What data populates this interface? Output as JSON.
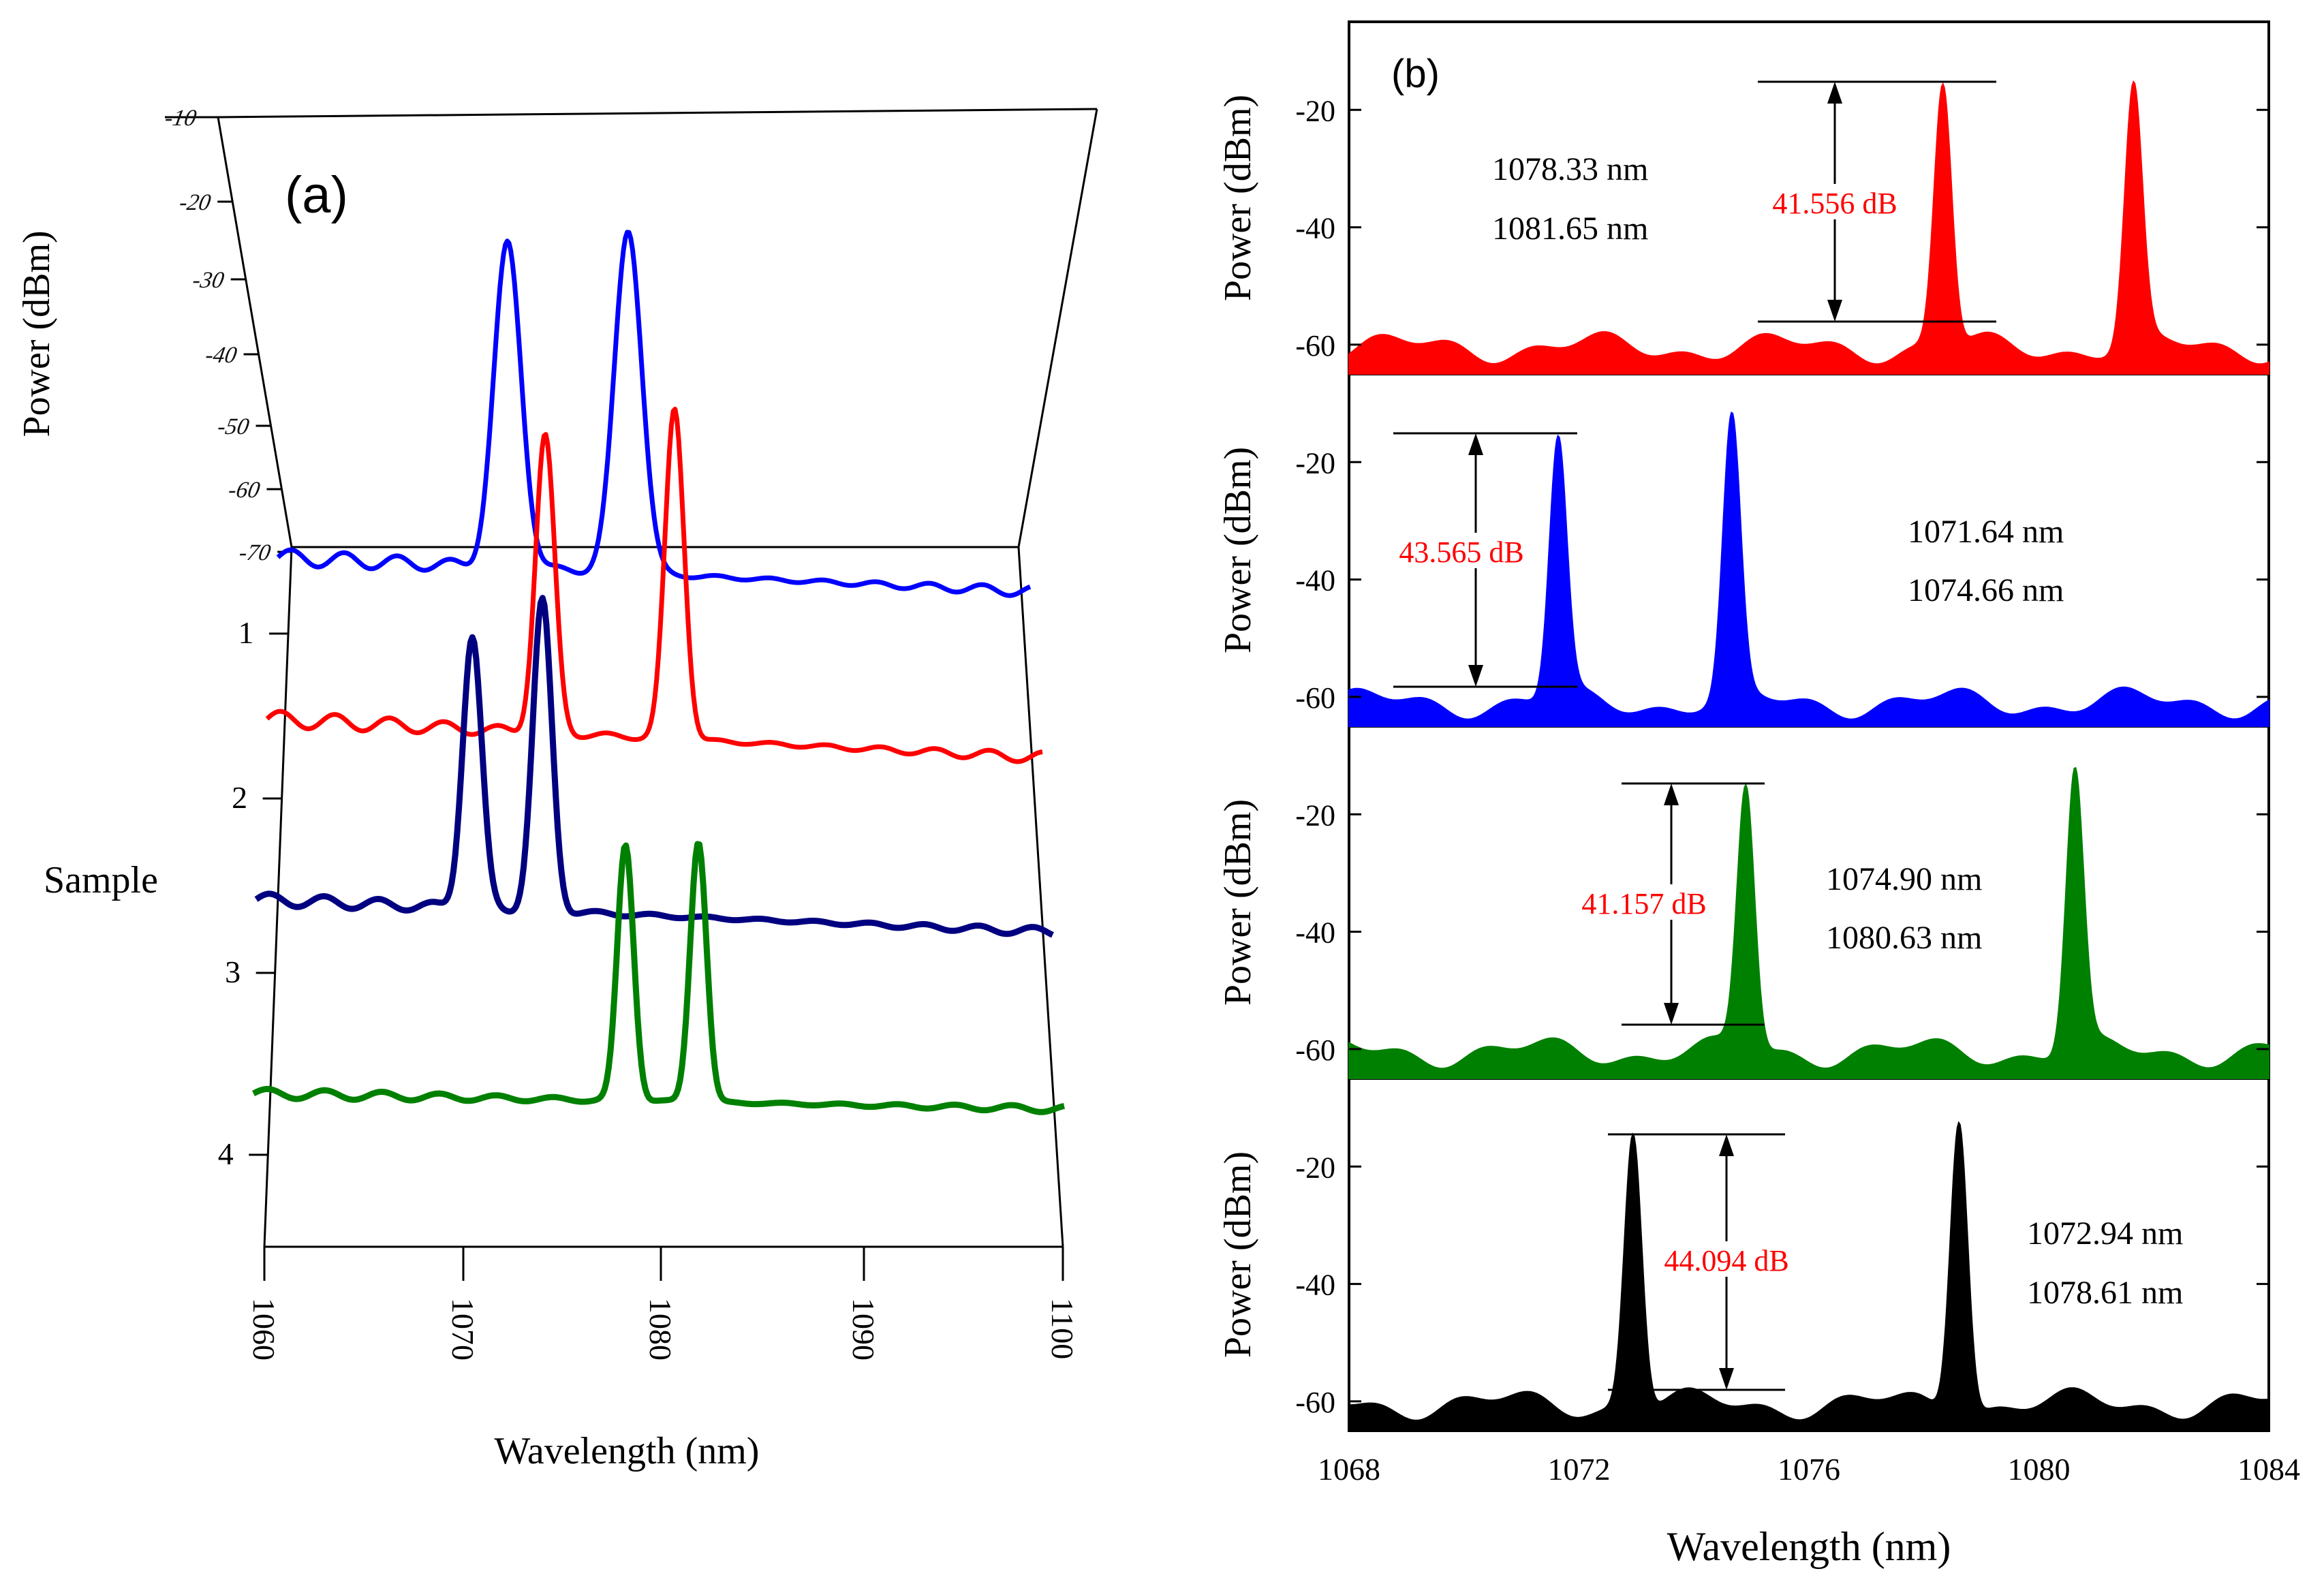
{
  "chart_data": [
    {
      "panel": "a",
      "type": "line",
      "label": "(a)",
      "xlabel": "Wavelength (nm)",
      "ylabel": "Power (dBm)",
      "zlabel": "Sample",
      "x_ticks": [
        "1060",
        "1070",
        "1080",
        "1090",
        "1100"
      ],
      "xlim": [
        1060,
        1100
      ],
      "y_ticks": [
        "-10",
        "-20",
        "-30",
        "-40",
        "-50",
        "-60",
        "-70"
      ],
      "ylim": [
        -70,
        -10
      ],
      "sample_ticks": [
        "1",
        "2",
        "3",
        "4"
      ],
      "series": [
        {
          "sample": 1,
          "color": "#0000ff",
          "peaks_nm": [
            1072.5,
            1078.5
          ]
        },
        {
          "sample": 2,
          "color": "#ff0000",
          "peaks_nm": [
            1074.0,
            1080.0
          ]
        },
        {
          "sample": 3,
          "color": "#000080",
          "peaks_nm": [
            1071.0,
            1074.4
          ]
        },
        {
          "sample": 4,
          "color": "#008000",
          "peaks_nm": [
            1078.3,
            1081.8
          ]
        }
      ]
    },
    {
      "panel": "b",
      "type": "area",
      "label": "(b)",
      "xlabel": "Wavelength (nm)",
      "ylabel": "Power (dBm)",
      "xlim": [
        1068,
        1084
      ],
      "x_ticks": [
        "1068",
        "1072",
        "1076",
        "1080",
        "1084"
      ],
      "ylim": [
        -65,
        -5
      ],
      "y_ticks": [
        "-20",
        "-40",
        "-60"
      ],
      "subpanels": [
        {
          "color": "#ff0000",
          "peaks_nm": [
            1078.33,
            1081.65
          ],
          "peak_dbm": [
            -15.6,
            -15.2
          ],
          "floor_dbm": -60.5,
          "wavelength_labels": [
            "1078.33 nm",
            "1081.65 nm"
          ],
          "extinction": "41.556 dB"
        },
        {
          "color": "#0000ff",
          "peaks_nm": [
            1071.64,
            1074.66
          ],
          "peak_dbm": [
            -15.5,
            -11.5
          ],
          "floor_dbm": -61.0,
          "wavelength_labels": [
            "1071.64 nm",
            "1074.66 nm"
          ],
          "extinction": "43.565 dB"
        },
        {
          "color": "#008000",
          "peaks_nm": [
            1074.9,
            1080.63
          ],
          "peak_dbm": [
            -15.0,
            -12.0
          ],
          "floor_dbm": -60.5,
          "wavelength_labels": [
            "1074.90 nm",
            "1080.63 nm"
          ],
          "extinction": "41.157 dB"
        },
        {
          "color": "#000000",
          "peaks_nm": [
            1072.94,
            1078.61
          ],
          "peak_dbm": [
            -14.5,
            -12.5
          ],
          "floor_dbm": -60.5,
          "wavelength_labels": [
            "1072.94 nm",
            "1078.61 nm"
          ],
          "extinction": "44.094 dB"
        }
      ]
    }
  ]
}
